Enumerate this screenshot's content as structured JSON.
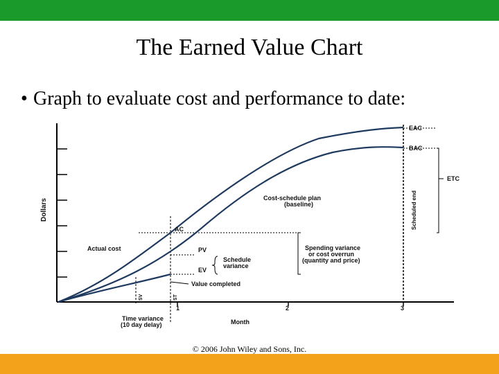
{
  "slide": {
    "title": "The Earned Value Chart",
    "bullet": "Graph to evaluate cost and performance to date:",
    "copyright": "© 2006 John Wiley and Sons, Inc."
  },
  "colors": {
    "top_bar": "#1a9a2a",
    "bottom_bar": "#f2a31b",
    "curve": "#1f3a5f"
  },
  "diagram": {
    "y_axis_label": "Dollars",
    "x_axis_label": "Month",
    "month_ticks": [
      "1",
      "2",
      "3"
    ],
    "curve_labels": {
      "eac": "EAC",
      "bac": "BAC",
      "etc": "ETC",
      "scheduled_end": "Scheduled end",
      "plan_line1": "Cost-schedule plan",
      "plan_line2": "(baseline)",
      "ac": "AC",
      "actual_cost": "Actual cost",
      "pv": "PV",
      "ev": "EV",
      "schedule_variance_line1": "Schedule",
      "schedule_variance_line2": "variance",
      "spending_line1": "Spending variance",
      "spending_line2": "or cost overrun",
      "spending_line3": "(quantity and price)",
      "value_completed": "Value completed",
      "time_variance_line1": "Time variance",
      "time_variance_line2": "(10 day delay)",
      "marker_left": "SV",
      "marker_right": "ST"
    }
  }
}
